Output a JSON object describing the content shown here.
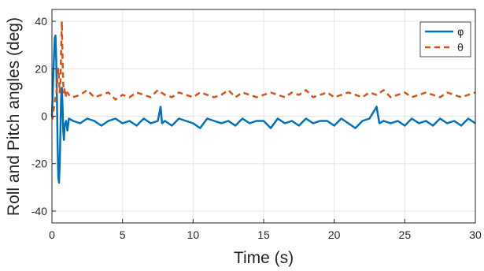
{
  "chart_data": {
    "type": "line",
    "title": "",
    "xlabel": "Time (s)",
    "ylabel": "Roll and Pitch angles (deg)",
    "xlim": [
      0,
      30
    ],
    "ylim": [
      -45,
      45
    ],
    "x_ticks": [
      "0",
      "5",
      "10",
      "15",
      "20",
      "25",
      "30"
    ],
    "y_ticks": [
      "-40",
      "-20",
      "0",
      "20",
      "40"
    ],
    "grid": true,
    "legend_position": "top-right",
    "series": [
      {
        "name": "φ",
        "color": "#0072BD",
        "style": "solid",
        "x": [
          0,
          0.05,
          0.1,
          0.15,
          0.2,
          0.25,
          0.3,
          0.35,
          0.4,
          0.45,
          0.5,
          0.55,
          0.6,
          0.65,
          0.7,
          0.75,
          0.8,
          0.85,
          0.9,
          1.0,
          1.1,
          1.2,
          1.5,
          2,
          2.5,
          3,
          3.5,
          4,
          4.5,
          5,
          5.5,
          6,
          6.5,
          7,
          7.5,
          7.7,
          7.8,
          8,
          8.5,
          9,
          9.5,
          10,
          10.5,
          11,
          11.5,
          12,
          12.5,
          13,
          13.5,
          14,
          14.5,
          15,
          15.5,
          16,
          16.5,
          17,
          17.5,
          18,
          18.5,
          19,
          19.5,
          20,
          20.5,
          21,
          21.5,
          22,
          22.5,
          23,
          23.2,
          23.5,
          24,
          24.5,
          25,
          25.5,
          26,
          26.5,
          27,
          27.5,
          28,
          28.5,
          29,
          29.5,
          30
        ],
        "values": [
          0,
          8,
          18,
          26,
          33,
          34,
          24,
          8,
          -12,
          -26,
          -28,
          -20,
          -6,
          8,
          12,
          4,
          -6,
          -10,
          -4,
          -2,
          -6,
          -1,
          -2,
          -3,
          -1,
          -2,
          -4,
          -2,
          -1,
          -3,
          -2,
          -4,
          -1,
          -3,
          -2,
          4,
          -3,
          -2,
          -4,
          -1,
          -2,
          -3,
          -5,
          -1,
          -2,
          -3,
          -2,
          -4,
          -1,
          -3,
          -2,
          -2,
          -5,
          -1,
          -3,
          -2,
          -4,
          -1,
          -3,
          -2,
          -2,
          -4,
          -1,
          -3,
          -5,
          -2,
          -1,
          4,
          -3,
          -2,
          -3,
          -2,
          -4,
          -1,
          -3,
          -2,
          -4,
          -1,
          -3,
          -2,
          -4,
          -1,
          -3
        ]
      },
      {
        "name": "θ",
        "color": "#D95319",
        "style": "dashed",
        "x": [
          0,
          0.05,
          0.1,
          0.15,
          0.2,
          0.25,
          0.3,
          0.35,
          0.4,
          0.45,
          0.5,
          0.55,
          0.6,
          0.65,
          0.7,
          0.75,
          0.8,
          0.85,
          0.9,
          1.0,
          1.1,
          1.2,
          1.5,
          2,
          2.5,
          3,
          3.5,
          4,
          4.5,
          5,
          5.5,
          6,
          6.5,
          7,
          7.5,
          8,
          8.5,
          9,
          9.5,
          10,
          10.5,
          11,
          11.5,
          12,
          12.5,
          13,
          13.5,
          14,
          14.5,
          15,
          15.5,
          16,
          16.5,
          17,
          17.5,
          18,
          18.5,
          19,
          19.5,
          20,
          20.5,
          21,
          21.5,
          22,
          22.5,
          23,
          23.5,
          24,
          24.5,
          25,
          25.5,
          26,
          26.5,
          27,
          27.5,
          28,
          28.5,
          29,
          29.5,
          30
        ],
        "values": [
          0,
          -1,
          2,
          4,
          6,
          8,
          9,
          12,
          17,
          20,
          16,
          10,
          14,
          28,
          40,
          24,
          14,
          10,
          12,
          8,
          10,
          9,
          8,
          9,
          11,
          8,
          9,
          10,
          7,
          9,
          8,
          10,
          9,
          8,
          11,
          9,
          8,
          10,
          9,
          8,
          10,
          9,
          8,
          9,
          11,
          8,
          10,
          9,
          8,
          9,
          10,
          9,
          8,
          10,
          9,
          11,
          8,
          9,
          10,
          8,
          9,
          10,
          9,
          8,
          10,
          9,
          11,
          8,
          9,
          10,
          8,
          9,
          10,
          9,
          8,
          10,
          9,
          8,
          9,
          10
        ]
      }
    ]
  }
}
